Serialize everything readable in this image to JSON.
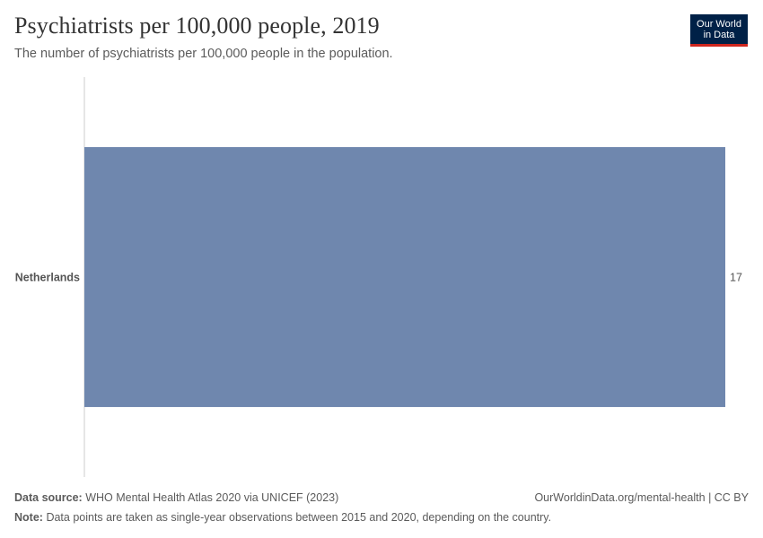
{
  "header": {
    "title": "Psychiatrists per 100,000 people, 2019",
    "subtitle": "The number of psychiatrists per 100,000 people in the population.",
    "logo_line1": "Our World",
    "logo_line2": "in Data"
  },
  "footer": {
    "source_label": "Data source:",
    "source_text": "WHO Mental Health Atlas 2020 via UNICEF (2023)",
    "url_text": "OurWorldinData.org/mental-health | CC BY",
    "note_label": "Note:",
    "note_text": "Data points are taken as single-year observations between 2015 and 2020, depending on the country."
  },
  "chart_data": {
    "type": "bar",
    "orientation": "horizontal",
    "title": "Psychiatrists per 100,000 people, 2019",
    "subtitle": "The number of psychiatrists per 100,000 people in the population.",
    "categories": [
      "Netherlands"
    ],
    "values": [
      17
    ],
    "value_labels": [
      "17"
    ],
    "xlim": [
      0,
      17
    ],
    "grid": false,
    "legend": "none",
    "bar_color": "#6f87ae",
    "axis_color": "#cccccc"
  }
}
